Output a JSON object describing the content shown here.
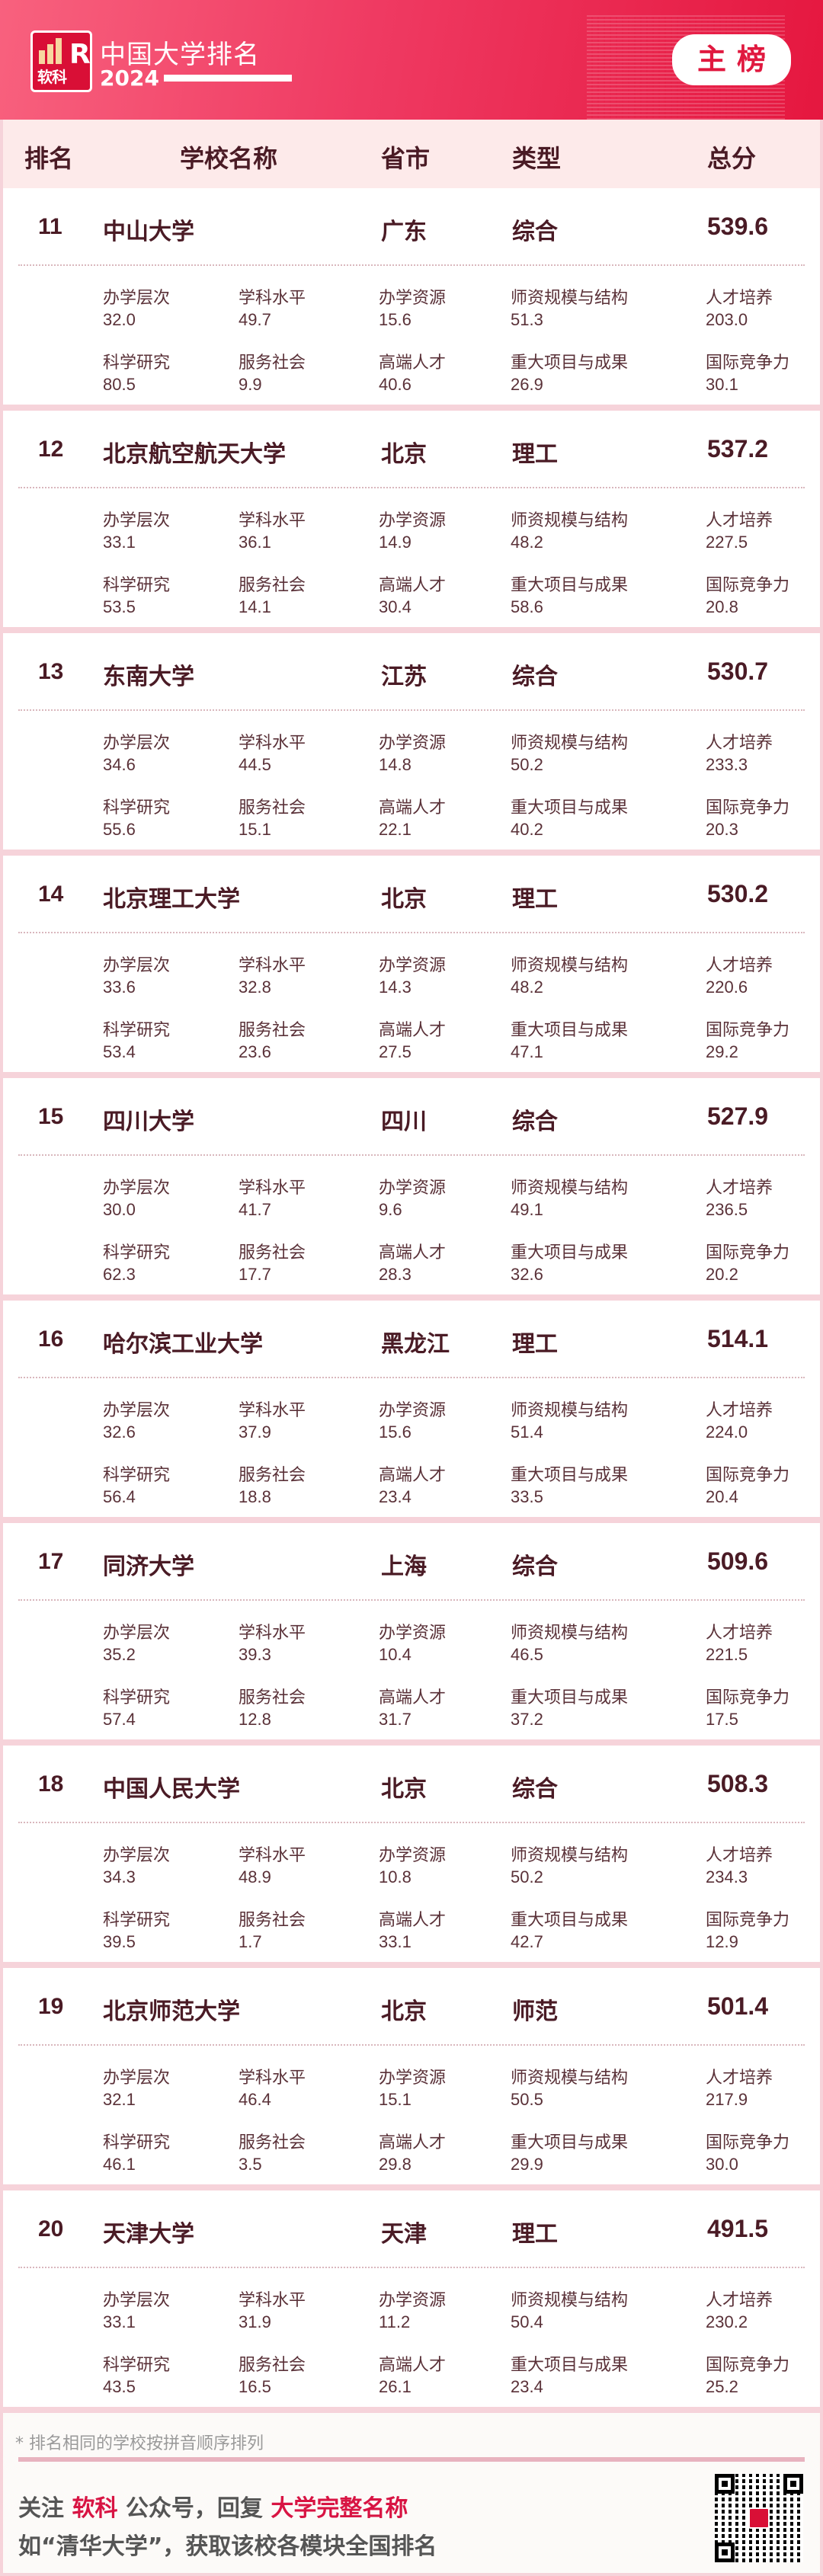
{
  "header": {
    "brand": "软科",
    "title": "中国大学排名",
    "year": "2024",
    "badge": "主榜",
    "brand_color": "#e5173f"
  },
  "columns": {
    "rank": "排名",
    "name": "学校名称",
    "province": "省市",
    "type": "类型",
    "score": "总分"
  },
  "metric_labels": [
    "办学层次",
    "学科水平",
    "办学资源",
    "师资规模与结构",
    "人才培养",
    "科学研究",
    "服务社会",
    "高端人才",
    "重大项目与成果",
    "国际竞争力"
  ],
  "rows": [
    {
      "rank": "11",
      "name": "中山大学",
      "province": "广东",
      "type": "综合",
      "score": "539.6",
      "metrics": [
        "32.0",
        "49.7",
        "15.6",
        "51.3",
        "203.0",
        "80.5",
        "9.9",
        "40.6",
        "26.9",
        "30.1"
      ]
    },
    {
      "rank": "12",
      "name": "北京航空航天大学",
      "province": "北京",
      "type": "理工",
      "score": "537.2",
      "metrics": [
        "33.1",
        "36.1",
        "14.9",
        "48.2",
        "227.5",
        "53.5",
        "14.1",
        "30.4",
        "58.6",
        "20.8"
      ]
    },
    {
      "rank": "13",
      "name": "东南大学",
      "province": "江苏",
      "type": "综合",
      "score": "530.7",
      "metrics": [
        "34.6",
        "44.5",
        "14.8",
        "50.2",
        "233.3",
        "55.6",
        "15.1",
        "22.1",
        "40.2",
        "20.3"
      ]
    },
    {
      "rank": "14",
      "name": "北京理工大学",
      "province": "北京",
      "type": "理工",
      "score": "530.2",
      "metrics": [
        "33.6",
        "32.8",
        "14.3",
        "48.2",
        "220.6",
        "53.4",
        "23.6",
        "27.5",
        "47.1",
        "29.2"
      ]
    },
    {
      "rank": "15",
      "name": "四川大学",
      "province": "四川",
      "type": "综合",
      "score": "527.9",
      "metrics": [
        "30.0",
        "41.7",
        "9.6",
        "49.1",
        "236.5",
        "62.3",
        "17.7",
        "28.3",
        "32.6",
        "20.2"
      ]
    },
    {
      "rank": "16",
      "name": "哈尔滨工业大学",
      "province": "黑龙江",
      "type": "理工",
      "score": "514.1",
      "metrics": [
        "32.6",
        "37.9",
        "15.6",
        "51.4",
        "224.0",
        "56.4",
        "18.8",
        "23.4",
        "33.5",
        "20.4"
      ]
    },
    {
      "rank": "17",
      "name": "同济大学",
      "province": "上海",
      "type": "综合",
      "score": "509.6",
      "metrics": [
        "35.2",
        "39.3",
        "10.4",
        "46.5",
        "221.5",
        "57.4",
        "12.8",
        "31.7",
        "37.2",
        "17.5"
      ]
    },
    {
      "rank": "18",
      "name": "中国人民大学",
      "province": "北京",
      "type": "综合",
      "score": "508.3",
      "metrics": [
        "34.3",
        "48.9",
        "10.8",
        "50.2",
        "234.3",
        "39.5",
        "1.7",
        "33.1",
        "42.7",
        "12.9"
      ]
    },
    {
      "rank": "19",
      "name": "北京师范大学",
      "province": "北京",
      "type": "师范",
      "score": "501.4",
      "metrics": [
        "32.1",
        "46.4",
        "15.1",
        "50.5",
        "217.9",
        "46.1",
        "3.5",
        "29.8",
        "29.9",
        "30.0"
      ]
    },
    {
      "rank": "20",
      "name": "天津大学",
      "province": "天津",
      "type": "理工",
      "score": "491.5",
      "metrics": [
        "33.1",
        "31.9",
        "11.2",
        "50.4",
        "230.2",
        "43.5",
        "16.5",
        "26.1",
        "23.4",
        "25.2"
      ]
    }
  ],
  "footer": {
    "note": "* 排名相同的学校按拼音顺序排列",
    "line1": [
      "关注 ",
      "软科",
      " 公众号，回复 ",
      "大学完整名称"
    ],
    "line2": "如“清华大学”，获取该校各模块全国排名",
    "qr_icon": "qr-code-icon"
  }
}
